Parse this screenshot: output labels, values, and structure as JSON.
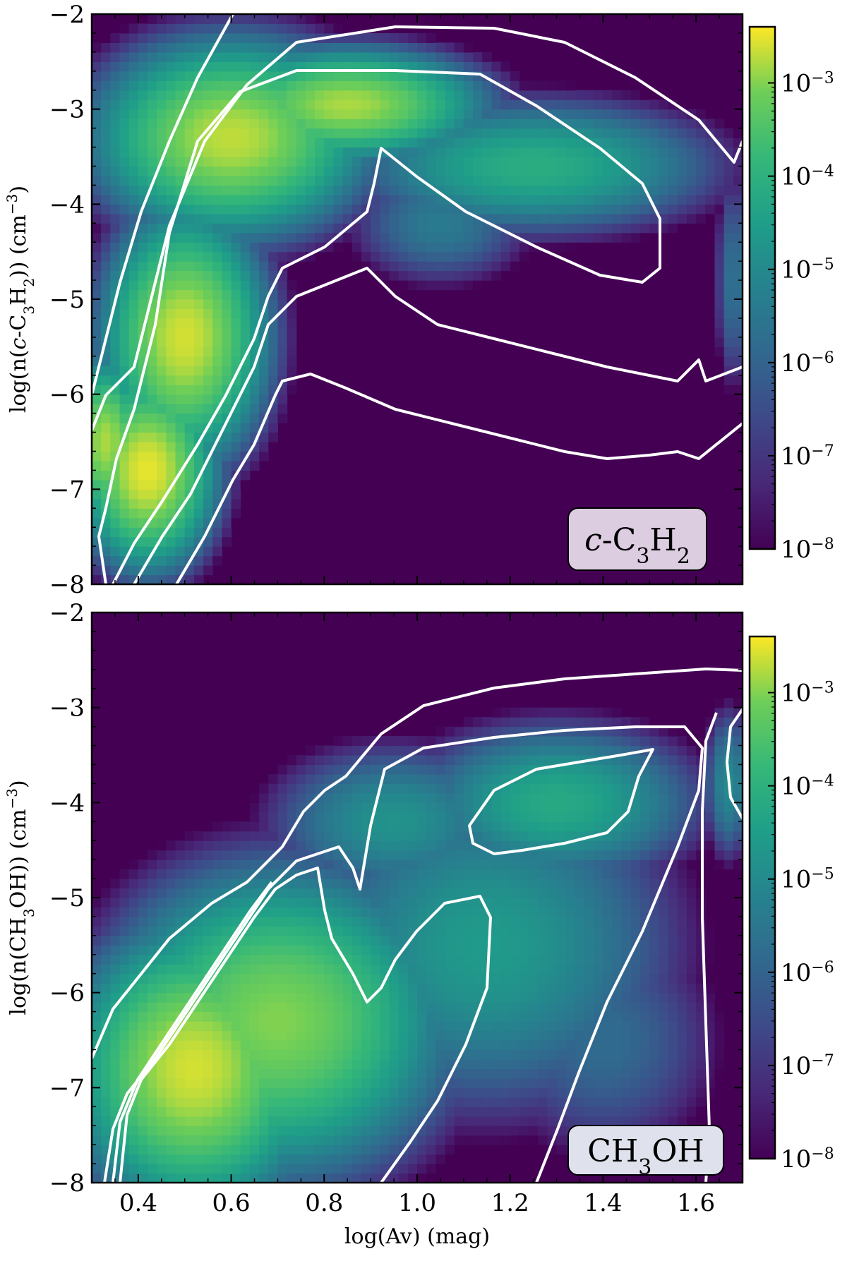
{
  "chart_data": [
    {
      "type": "heatmap",
      "panel": "top",
      "species_label": "c-C3H2",
      "xlabel": "",
      "ylabel": "log(n(c-C3H2)) (cm^-3)",
      "xlim": [
        0.3,
        1.7
      ],
      "ylim": [
        -8,
        -2
      ],
      "y_ticks": [
        "−2",
        "−3",
        "−4",
        "−5",
        "−6",
        "−7",
        "−8"
      ],
      "x_tick_values": [
        0.4,
        0.6,
        0.8,
        1.0,
        1.2,
        1.4,
        1.6
      ],
      "x_tick_labels_shown": false,
      "colormap": "viridis",
      "colorbar": {
        "scale": "log",
        "range": [
          1e-08,
          0.004
        ],
        "ticks": [
          "10−3",
          "10−4",
          "10−5",
          "10−6",
          "10−7",
          "10−8"
        ]
      },
      "background_color": "#440154",
      "contour_color": "#ffffff",
      "blobs": [
        {
          "x": 0.6,
          "y": -3.3,
          "peak": -2.7,
          "sx": 0.2,
          "sy": 0.7
        },
        {
          "x": 0.85,
          "y": -2.95,
          "peak": -2.8,
          "sx": 0.2,
          "sy": 0.4
        },
        {
          "x": 1.25,
          "y": -3.6,
          "peak": -4.1,
          "sx": 0.28,
          "sy": 0.5
        },
        {
          "x": 0.5,
          "y": -5.4,
          "peak": -2.6,
          "sx": 0.12,
          "sy": 0.9
        },
        {
          "x": 0.42,
          "y": -6.8,
          "peak": -2.5,
          "sx": 0.1,
          "sy": 0.7
        },
        {
          "x": 0.33,
          "y": -6.5,
          "peak": -2.8,
          "sx": 0.06,
          "sy": 0.6
        },
        {
          "x": 1.05,
          "y": -4.2,
          "peak": -5.4,
          "sx": 0.15,
          "sy": 0.5
        },
        {
          "x": 1.68,
          "y": -4.8,
          "peak": -5.6,
          "sx": 0.03,
          "sy": 0.9
        }
      ]
    },
    {
      "type": "heatmap",
      "panel": "bottom",
      "species_label": "CH3OH",
      "xlabel": "log(Av) (mag)",
      "ylabel": "log(n(CH3OH)) (cm^-3)",
      "xlim": [
        0.3,
        1.7
      ],
      "ylim": [
        -8,
        -2
      ],
      "y_ticks": [
        "−2",
        "−3",
        "−4",
        "−5",
        "−6",
        "−7",
        "−8"
      ],
      "x_tick_values": [
        0.4,
        0.6,
        0.8,
        1.0,
        1.2,
        1.4,
        1.6
      ],
      "x_tick_labels": [
        "0.4",
        "0.6",
        "0.8",
        "1.0",
        "1.2",
        "1.4",
        "1.6"
      ],
      "colormap": "viridis",
      "colorbar": {
        "scale": "log",
        "range": [
          1e-08,
          0.004
        ],
        "ticks": [
          "10−3",
          "10−4",
          "10−5",
          "10−6",
          "10−7",
          "10−8"
        ]
      },
      "background_color": "#440154",
      "contour_color": "#ffffff",
      "blobs": [
        {
          "x": 0.52,
          "y": -6.8,
          "peak": -2.6,
          "sx": 0.18,
          "sy": 1.0
        },
        {
          "x": 0.7,
          "y": -6.3,
          "peak": -3.0,
          "sx": 0.25,
          "sy": 1.1
        },
        {
          "x": 1.3,
          "y": -4.0,
          "peak": -4.2,
          "sx": 0.22,
          "sy": 0.6
        },
        {
          "x": 1.15,
          "y": -5.5,
          "peak": -4.6,
          "sx": 0.3,
          "sy": 1.3
        },
        {
          "x": 0.95,
          "y": -4.2,
          "peak": -4.8,
          "sx": 0.2,
          "sy": 0.6
        },
        {
          "x": 1.4,
          "y": -6.5,
          "peak": -5.8,
          "sx": 0.2,
          "sy": 1.0
        },
        {
          "x": 1.67,
          "y": -3.8,
          "peak": -5.0,
          "sx": 0.04,
          "sy": 0.6
        }
      ]
    }
  ]
}
